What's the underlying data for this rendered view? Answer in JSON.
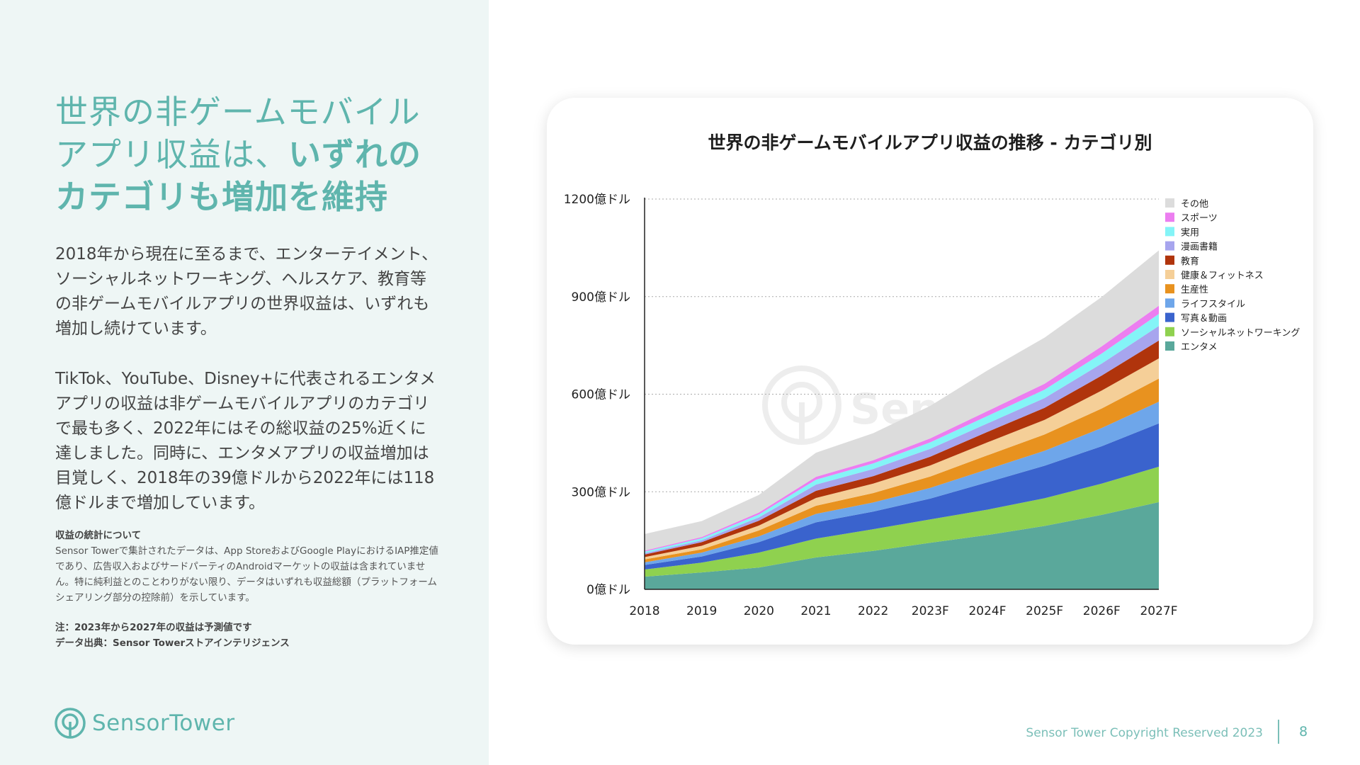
{
  "colors": {
    "accent": "#5fb5ad",
    "panel": "#eef6f5"
  },
  "headline": {
    "normal": "世界の非ゲームモバイルアプリ収益は、",
    "bold": "いずれのカテゴリも増加を維持"
  },
  "body": {
    "p1": "2018年から現在に至るまで、エンターテイメント、ソーシャルネットワーキング、ヘルスケア、教育等の非ゲームモバイルアプリの世界収益は、いずれも増加し続けています。",
    "p2": "TikTok、YouTube、Disney+に代表されるエンタメアプリの収益は非ゲームモバイルアプリのカテゴリで最も多く、2022年にはその総収益の25%近くに達しました。同時に、エンタメアプリの収益増加は目覚しく、2018年の39億ドルから2022年には118億ドルまで増加しています。"
  },
  "notes": {
    "title": "収益の統計について",
    "text": "Sensor Towerで集計されたデータは、App StoreおよびGoogle PlayにおけるIAP推定値であり、広告収入およびサードパーティのAndroidマーケットの収益は含まれていません。特に純利益とのことわりがない限り、データはいずれも収益総額（プラットフォームシェアリング部分の控除前）を示しています。",
    "note": "注：2023年から2027年の収益は予測値です",
    "source": "データ出典：Sensor Towerストアインテリジェンス"
  },
  "logo": {
    "text": "SensorTower",
    "icon": "sensor-tower-logo-icon"
  },
  "watermark": "SensorTower",
  "footer": {
    "copyright": "Sensor Tower Copyright Reserved 2023",
    "page": "8"
  },
  "chart_data": {
    "type": "area",
    "stacked": true,
    "title": "世界の非ゲームモバイルアプリ収益の推移 - カテゴリ別",
    "x": [
      "2018",
      "2019",
      "2020",
      "2021",
      "2022",
      "2023F",
      "2024F",
      "2025F",
      "2026F",
      "2027F"
    ],
    "ylim": [
      0,
      1200
    ],
    "yticks": [
      0,
      300,
      600,
      900,
      1200
    ],
    "ytick_labels": [
      "0億ドル",
      "300億ドル",
      "600億ドル",
      "900億ドル",
      "1200億ドル"
    ],
    "grid": true,
    "legend_position": "right",
    "series": [
      {
        "name": "エンタメ",
        "color": "#5aa89b",
        "values": [
          39,
          52,
          67,
          98,
          118,
          143,
          167,
          195,
          229,
          268
        ]
      },
      {
        "name": "ソーシャルネットワーキング",
        "color": "#8fd14f",
        "values": [
          22,
          30,
          46,
          58,
          67,
          72,
          78,
          85,
          96,
          109
        ]
      },
      {
        "name": "写真＆動画",
        "color": "#3a63cd",
        "values": [
          14,
          19,
          32,
          50,
          54,
          64,
          84,
          100,
          115,
          133
        ]
      },
      {
        "name": "ライフスタイル",
        "color": "#6ea6ea",
        "values": [
          8,
          12,
          18,
          26,
          28,
          33,
          40,
          46,
          56,
          67
        ]
      },
      {
        "name": "生産性",
        "color": "#e8921f",
        "values": [
          9,
          10,
          18,
          25,
          29,
          35,
          43,
          50,
          60,
          71
        ]
      },
      {
        "name": "健康＆フィットネス",
        "color": "#f5cf98",
        "values": [
          7,
          11,
          15,
          24,
          29,
          34,
          40,
          45,
          55,
          62
        ]
      },
      {
        "name": "教育",
        "color": "#b0340c",
        "values": [
          8,
          11,
          15,
          22,
          23,
          27,
          32,
          37,
          46,
          55
        ]
      },
      {
        "name": "漫画書籍",
        "color": "#a7a5ee",
        "values": [
          4,
          6,
          10,
          19,
          22,
          24,
          26,
          30,
          37,
          45
        ]
      },
      {
        "name": "実用",
        "color": "#84f4f7",
        "values": [
          5,
          6,
          9,
          15,
          17,
          20,
          23,
          26,
          31,
          37
        ]
      },
      {
        "name": "スポーツ",
        "color": "#ec7ef0",
        "values": [
          3,
          4,
          6,
          9,
          10,
          12,
          15,
          18,
          22,
          25
        ]
      },
      {
        "name": "その他",
        "color": "#dcdcdc",
        "values": [
          51,
          49,
          54,
          74,
          83,
          100,
          125,
          142,
          152,
          170
        ]
      }
    ]
  }
}
